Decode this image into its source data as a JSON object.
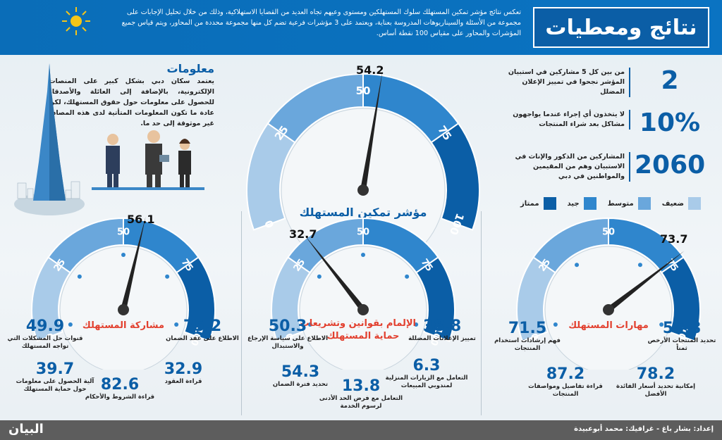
{
  "header": {
    "title": "نتائج ومعطيات",
    "intro": "تعكس نتائج مؤشر تمكين المستهلك سلوك المستهلكين ومستوى وعيهم تجاه العديد من القضايا الاستهلاكية، وذلك من خلال تحليل الإجابات على مجموعة من الأسئلة والسيناريوهات المدروسة بعناية، ويعتمد على 3 مؤشرات فرعية تضم كل منها مجموعة محددة من المحاور، ويتم قياس جميع المؤشرات والمحاور على مقياس 100 نقطة أساس."
  },
  "info": {
    "title": "معلومات",
    "text": "يعتمد سكان دبي بشكل كبير على المنصات الإلكترونية، بالإضافة إلى العائلة والأصدقاء للحصول على معلومات حول حقوق المستهلك، لكن عادة ما تكون المعلومات المتأتية لدى هذه المصادر غير موثوقة إلى حد ما."
  },
  "stats": [
    {
      "value": "2",
      "text": "من بين كل 5 مشاركين في استبيان المؤشر نجحوا في تمييز الإعلان المضلل"
    },
    {
      "value": "10%",
      "text": "لا يتخذون أي إجراء عندما يواجهون مشاكل بعد شراء المنتجات"
    },
    {
      "value": "2060",
      "text": "المشاركين من الذكور والإناث في الاستبيان وهم من المقيمين والمواطنين في دبي"
    }
  ],
  "legend": [
    {
      "label": "ضعيف",
      "color": "#a9cbe9"
    },
    {
      "label": "متوسط",
      "color": "#6aa7dc"
    },
    {
      "label": "جيد",
      "color": "#2f86cd"
    },
    {
      "label": "ممتاز",
      "color": "#0b5ea6"
    }
  ],
  "gauges": {
    "main": {
      "value": "54.2",
      "fraction": 0.542,
      "label": "مؤشر تمكين المستهلك",
      "ticks": [
        "0",
        "25",
        "50",
        "75",
        "100"
      ]
    },
    "participation": {
      "value": "56.1",
      "fraction": 0.561,
      "label": "مشاركة المستهلك",
      "ticks": [
        "0",
        "25",
        "50",
        "75",
        "100"
      ],
      "items": [
        {
          "num": "49.9",
          "text": "قنوات حل المشكلات التي تواجه المستهلك"
        },
        {
          "num": "75.2",
          "text": "الاطلاع على عقد الضمان"
        },
        {
          "num": "39.7",
          "text": "آلية الحصول على معلومات حول حماية المستهلك"
        },
        {
          "num": "32.9",
          "text": "قراءة العقود"
        },
        {
          "num": "82.6",
          "text": "قراءة الشروط والأحكام"
        }
      ]
    },
    "laws": {
      "value": "32.7",
      "fraction": 0.327,
      "label_line1": "الإلمام بقوانين وتشريعات",
      "label_line2": "حماية المستهلك",
      "ticks": [
        "0",
        "25",
        "50",
        "75",
        "100"
      ],
      "items": [
        {
          "num": "50.3",
          "text": "الاطلاع على سياسة الإرجاع والاستبدال"
        },
        {
          "num": "38.8",
          "text": "تمييز الإعلانات المضللة"
        },
        {
          "num": "54.3",
          "text": "تحديد فترة الضمان"
        },
        {
          "num": "6.3",
          "text": "التعامل مع الزيارات المنزلية لمندوبي المبيعات"
        },
        {
          "num": "13.8",
          "text": "التعامل مع فرض الحد الأدنى لرسوم الخدمة"
        }
      ]
    },
    "skills": {
      "value": "73.7",
      "fraction": 0.737,
      "label": "مهارات المستهلك",
      "ticks": [
        "0",
        "25",
        "50",
        "75",
        "100"
      ],
      "items": [
        {
          "num": "71.5",
          "text": "فهم إرشادات استخدام المنتجات"
        },
        {
          "num": "55.8",
          "text": "تحديد المنتجات الأرخص ثمناً"
        },
        {
          "num": "87.2",
          "text": "قراءة تفاصيل ومواصفات المنتجات"
        },
        {
          "num": "78.2",
          "text": "إمكانية تحديد أسعار الفائدة الأفضل"
        }
      ]
    }
  },
  "footer": {
    "credit": "إعداد: بشار باغ - غرافيك: محمد أبوعبيدة",
    "logo": "البيان"
  }
}
